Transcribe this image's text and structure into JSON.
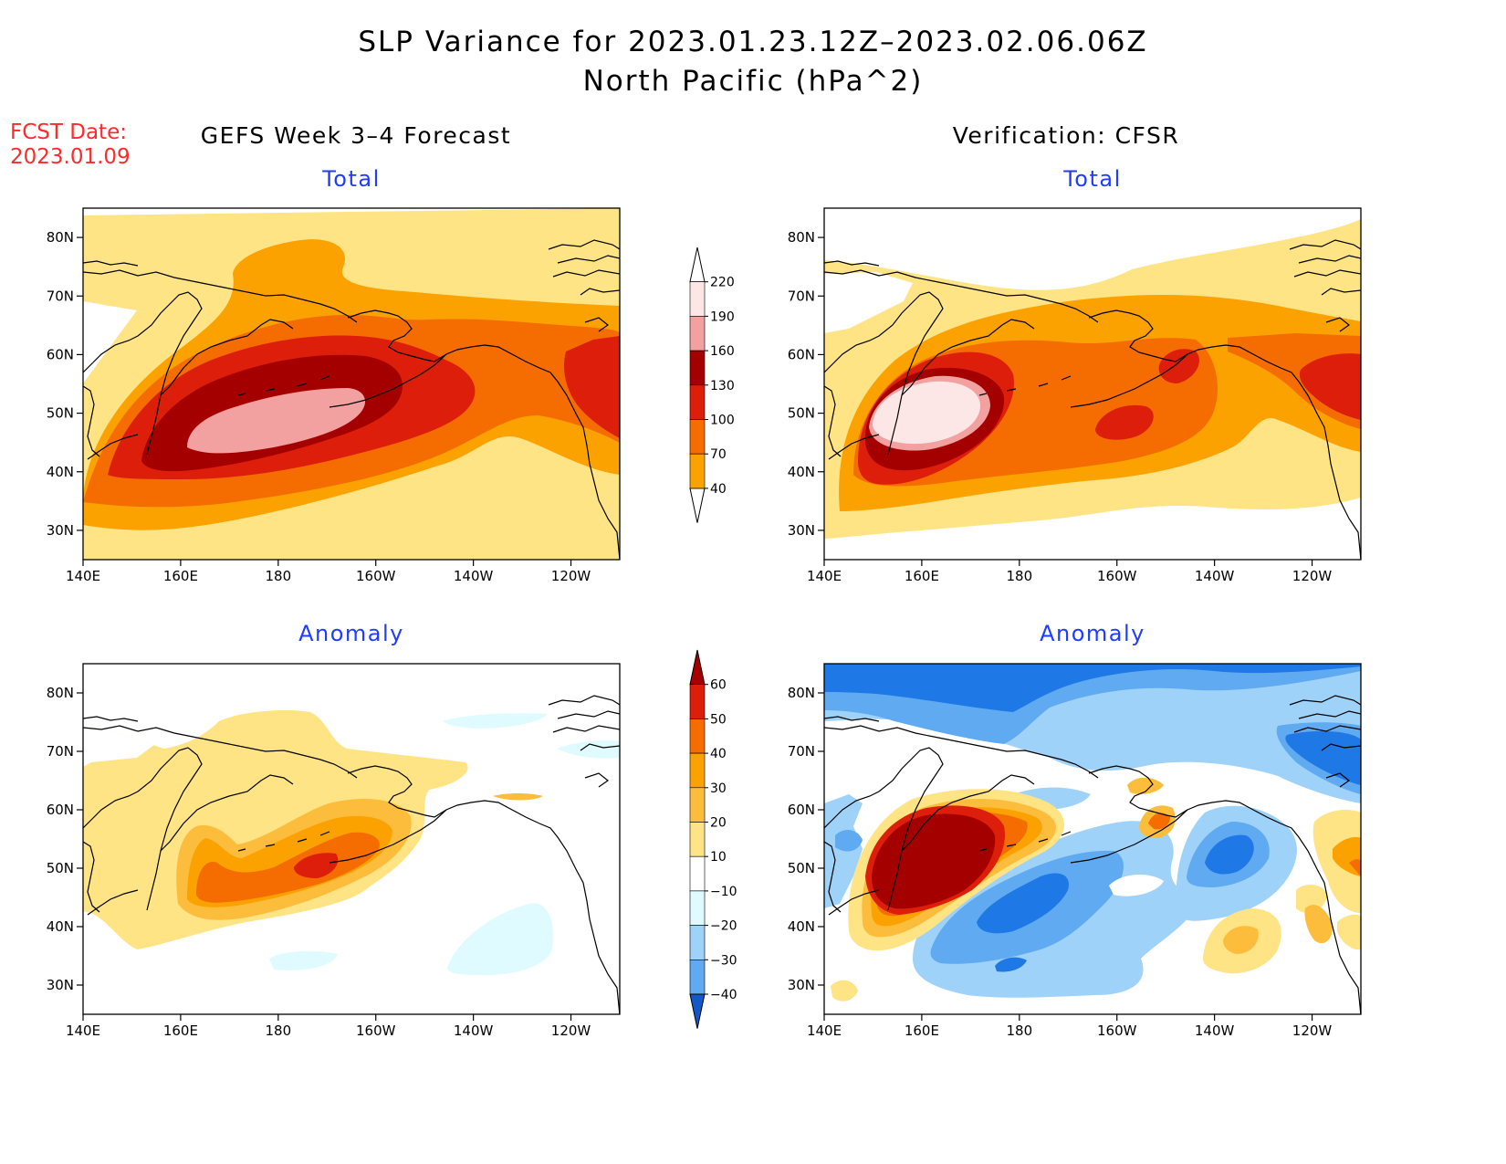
{
  "title_line1": "SLP Variance for 2023.01.23.12Z–2023.02.06.06Z",
  "title_line2": "North Pacific (hPa^2)",
  "fcst_label": "FCST Date:",
  "fcst_date": "2023.01.09",
  "left_header": "GEFS Week 3–4 Forecast",
  "right_header": "Verification: CFSR",
  "panel_titles": {
    "total": "Total",
    "anomaly": "Anomaly"
  },
  "lat_labels": [
    "80N",
    "70N",
    "60N",
    "50N",
    "40N",
    "30N"
  ],
  "lon_labels": [
    "140E",
    "160E",
    "180",
    "160W",
    "140W",
    "120W"
  ],
  "total_colorbar": {
    "labels": [
      "220",
      "190",
      "160",
      "130",
      "100",
      "70",
      "40"
    ],
    "colors": [
      "#fde6e6",
      "#f2a0a0",
      "#a50000",
      "#dc1e0a",
      "#f56c00",
      "#fca200",
      "#fee484"
    ]
  },
  "anomaly_colorbar": {
    "labels": [
      "60",
      "50",
      "40",
      "30",
      "20",
      "10",
      "−10",
      "−20",
      "−30",
      "−40"
    ],
    "colors": [
      "#a50000",
      "#dc1e0a",
      "#f56c00",
      "#fca200",
      "#fdbd3c",
      "#fee484",
      "#ffffff",
      "#e0fbff",
      "#9fd2f8",
      "#5faaf0",
      "#1e78e6",
      "#1258c8"
    ]
  }
}
